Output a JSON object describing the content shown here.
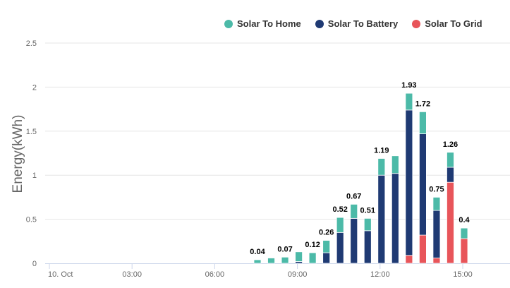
{
  "chart_data": {
    "type": "bar",
    "stacked": true,
    "title": "",
    "xlabel": "",
    "ylabel": "Energy(kWh)",
    "ylim": [
      0,
      2.5
    ],
    "yticks": [
      "0",
      "0.5",
      "1",
      "1.5",
      "2",
      "2.5"
    ],
    "xticks": [
      "10. Oct",
      "03:00",
      "06:00",
      "09:00",
      "12:00",
      "15:00"
    ],
    "grid": true,
    "legend_position": "top-right",
    "categories": [
      "07:30",
      "08:00",
      "08:30",
      "09:00",
      "09:30",
      "10:00",
      "10:30",
      "11:00",
      "11:30",
      "12:00",
      "12:30",
      "13:00",
      "13:30",
      "14:00",
      "14:30",
      "15:00"
    ],
    "series": [
      {
        "name": "Solar To Grid",
        "color": "#e8555a",
        "values": [
          0,
          0,
          0,
          0,
          0,
          0,
          0,
          0,
          0,
          0,
          0,
          0.09,
          0.32,
          0.06,
          0.92,
          0.28
        ]
      },
      {
        "name": "Solar To Battery",
        "color": "#1f3a73",
        "values": [
          0,
          0,
          0,
          0.02,
          0,
          0.12,
          0.35,
          0.51,
          0.37,
          1.0,
          1.02,
          1.65,
          1.15,
          0.54,
          0.17,
          0
        ]
      },
      {
        "name": "Solar To Home",
        "color": "#4cbaa8",
        "values": [
          0.04,
          0.06,
          0.07,
          0.11,
          0.12,
          0.14,
          0.17,
          0.16,
          0.14,
          0.19,
          0.2,
          0.19,
          0.25,
          0.15,
          0.17,
          0.12
        ]
      }
    ],
    "totals": [
      0.04,
      0.06,
      0.07,
      0.13,
      0.12,
      0.26,
      0.52,
      0.67,
      0.51,
      1.19,
      1.22,
      1.93,
      1.72,
      0.75,
      1.26,
      0.4
    ],
    "data_labels": [
      "0.04",
      "",
      "0.07",
      "",
      "0.12",
      "0.26",
      "0.52",
      "0.67",
      "0.51",
      "1.19",
      "",
      "1.93",
      "1.72",
      "0.75",
      "1.26",
      "0.4"
    ],
    "legend": [
      "Solar To Home",
      "Solar To Battery",
      "Solar To Grid"
    ]
  },
  "colors": {
    "home": "#4cbaa8",
    "battery": "#1f3a73",
    "grid": "#e8555a",
    "gridline": "#e6e6e6",
    "axis_text": "#666666"
  }
}
